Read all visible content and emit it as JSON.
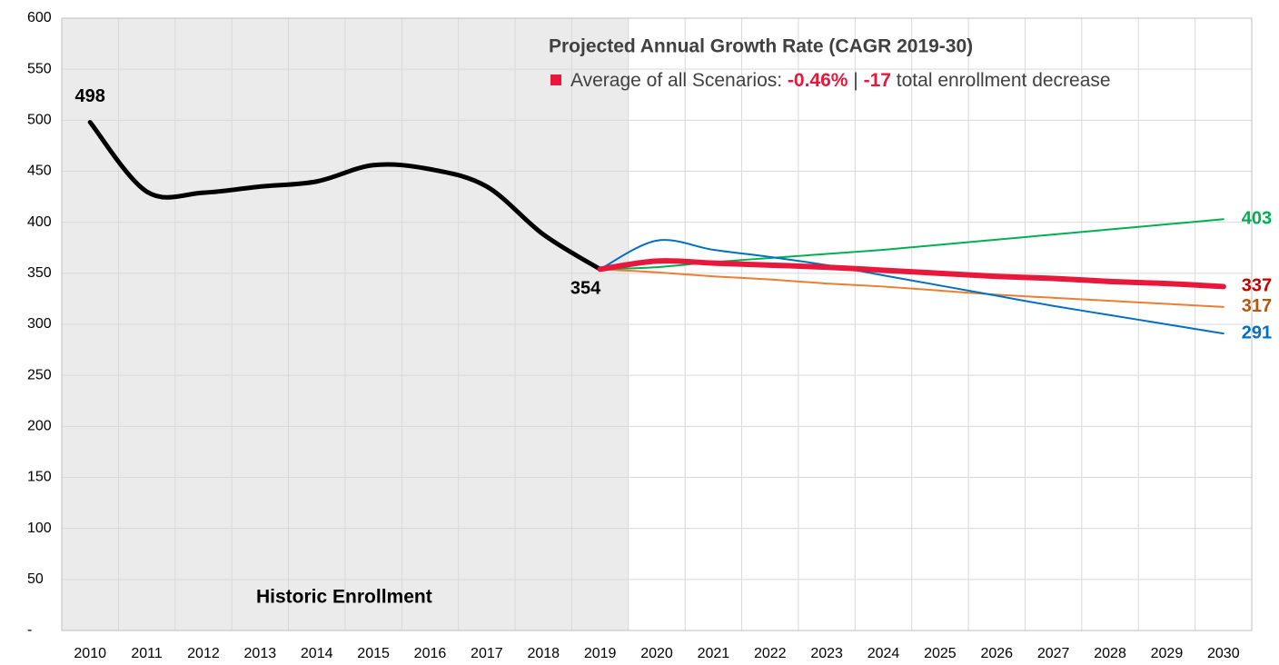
{
  "chart_data": {
    "type": "line",
    "annotation_title": "Projected Annual Growth Rate (CAGR 2019-30)",
    "legend_text": {
      "name": "Average of all Scenarios: ",
      "rate": "-0.46%",
      "sep": " | ",
      "change": "-17",
      "desc": " total enrollment decrease",
      "color": "#e8173c"
    },
    "region_label": "Historic Enrollment",
    "categories": [
      "2010",
      "2011",
      "2012",
      "2013",
      "2014",
      "2015",
      "2016",
      "2017",
      "2018",
      "2019",
      "2020",
      "2021",
      "2022",
      "2023",
      "2024",
      "2025",
      "2026",
      "2027",
      "2028",
      "2029",
      "2030"
    ],
    "ylim": [
      0,
      600
    ],
    "yticks": [
      {
        "value": 0,
        "label": "-"
      },
      50,
      100,
      150,
      200,
      250,
      300,
      350,
      400,
      450,
      500,
      550,
      600
    ],
    "grid": true,
    "shade_until": "2019",
    "series": [
      {
        "color": "#000000",
        "width": 5,
        "values": [
          498,
          430,
          429,
          435,
          440,
          456,
          452,
          435,
          388,
          354,
          null,
          null,
          null,
          null,
          null,
          null,
          null,
          null,
          null,
          null,
          null
        ],
        "label_points": [
          0,
          9
        ],
        "label_color": "#000000"
      },
      {
        "color": "#ed7d31",
        "width": 2,
        "values": [
          null,
          null,
          null,
          null,
          null,
          null,
          null,
          null,
          null,
          354,
          351,
          347,
          344,
          340,
          337,
          333,
          329,
          326,
          323,
          320,
          317
        ],
        "label_points": [
          20
        ],
        "label_color": "#b5560f"
      },
      {
        "color": "#00b050",
        "width": 2,
        "values": [
          null,
          null,
          null,
          null,
          null,
          null,
          null,
          null,
          null,
          354,
          356,
          361,
          365,
          369,
          373,
          378,
          383,
          388,
          393,
          398,
          403
        ],
        "label_points": [
          20
        ],
        "label_color": "#00b050"
      },
      {
        "color": "#0070c0",
        "width": 2,
        "values": [
          null,
          null,
          null,
          null,
          null,
          null,
          null,
          null,
          null,
          354,
          382,
          373,
          366,
          358,
          348,
          338,
          328,
          318,
          309,
          300,
          291
        ],
        "label_points": [
          20
        ],
        "label_color": "#0070c0"
      },
      {
        "color": "#e8173c",
        "width": 6,
        "values": [
          null,
          null,
          null,
          null,
          null,
          null,
          null,
          null,
          null,
          354,
          362,
          360,
          358,
          356,
          353,
          350,
          347,
          345,
          342,
          340,
          337
        ],
        "label_points": [
          20
        ],
        "label_color": "#c00000"
      }
    ]
  }
}
